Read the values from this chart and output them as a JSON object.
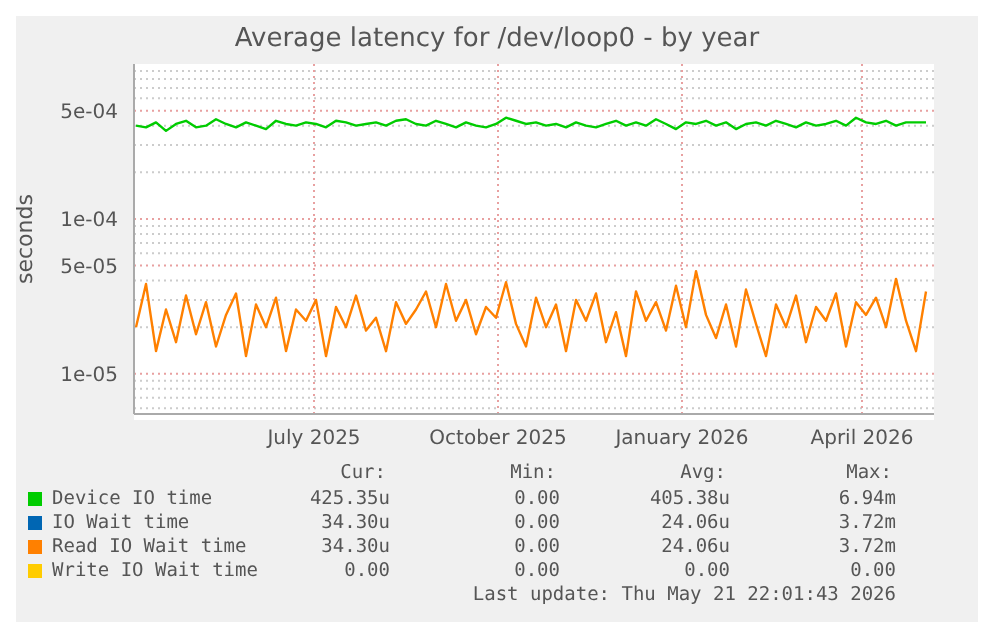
{
  "chart_data": {
    "type": "line",
    "title": "Average latency for /dev/loop0 - by year",
    "ylabel": "seconds",
    "log": "y",
    "grid": true,
    "legend": "bottom",
    "marker": "none",
    "line_style": "solid",
    "xlim": [
      "2025-04-02",
      "2026-05-07"
    ],
    "xticks": [
      {
        "value": "2025-07-01",
        "label": "July 2025"
      },
      {
        "value": "2025-10-01",
        "label": "October 2025"
      },
      {
        "value": "2026-01-01",
        "label": "January 2026"
      },
      {
        "value": "2026-04-01",
        "label": "April 2026"
      }
    ],
    "ylim": [
      5.5e-06,
      0.001
    ],
    "yticks": [
      {
        "value": 6e-06,
        "label": null
      },
      {
        "value": 7e-06,
        "label": null
      },
      {
        "value": 8e-06,
        "label": null
      },
      {
        "value": 9e-06,
        "label": null
      },
      {
        "value": 1e-05,
        "label": "1e-05"
      },
      {
        "value": 2e-05,
        "label": null
      },
      {
        "value": 3e-05,
        "label": null
      },
      {
        "value": 4e-05,
        "label": null
      },
      {
        "value": 5e-05,
        "label": "5e-05"
      },
      {
        "value": 6e-05,
        "label": null
      },
      {
        "value": 7e-05,
        "label": null
      },
      {
        "value": 8e-05,
        "label": null
      },
      {
        "value": 9e-05,
        "label": null
      },
      {
        "value": 0.0001,
        "label": "1e-04"
      },
      {
        "value": 0.0002,
        "label": null
      },
      {
        "value": 0.0003,
        "label": null
      },
      {
        "value": 0.0004,
        "label": null
      },
      {
        "value": 0.0005,
        "label": "5e-04"
      },
      {
        "value": 0.0006,
        "label": null
      },
      {
        "value": 0.0007,
        "label": null
      },
      {
        "value": 0.0008,
        "label": null
      },
      {
        "value": 0.0009,
        "label": null
      }
    ],
    "x": [
      "2025-04-03",
      "2025-04-08",
      "2025-04-13",
      "2025-04-18",
      "2025-04-23",
      "2025-04-28",
      "2025-05-03",
      "2025-05-08",
      "2025-05-13",
      "2025-05-18",
      "2025-05-23",
      "2025-05-28",
      "2025-06-02",
      "2025-06-07",
      "2025-06-12",
      "2025-06-17",
      "2025-06-22",
      "2025-06-27",
      "2025-07-02",
      "2025-07-07",
      "2025-07-12",
      "2025-07-17",
      "2025-07-22",
      "2025-07-27",
      "2025-08-01",
      "2025-08-06",
      "2025-08-11",
      "2025-08-16",
      "2025-08-21",
      "2025-08-26",
      "2025-08-31",
      "2025-09-05",
      "2025-09-10",
      "2025-09-15",
      "2025-09-20",
      "2025-09-25",
      "2025-09-30",
      "2025-10-05",
      "2025-10-10",
      "2025-10-15",
      "2025-10-20",
      "2025-10-25",
      "2025-10-30",
      "2025-11-04",
      "2025-11-09",
      "2025-11-14",
      "2025-11-19",
      "2025-11-24",
      "2025-11-29",
      "2025-12-04",
      "2025-12-09",
      "2025-12-14",
      "2025-12-19",
      "2025-12-24",
      "2025-12-29",
      "2026-01-03",
      "2026-01-08",
      "2026-01-13",
      "2026-01-18",
      "2026-01-23",
      "2026-01-28",
      "2026-02-02",
      "2026-02-07",
      "2026-02-12",
      "2026-02-17",
      "2026-02-22",
      "2026-02-27",
      "2026-03-04",
      "2026-03-09",
      "2026-03-14",
      "2026-03-19",
      "2026-03-24",
      "2026-03-29",
      "2026-04-03",
      "2026-04-08",
      "2026-04-13",
      "2026-04-18",
      "2026-04-23",
      "2026-04-28",
      "2026-05-03"
    ],
    "series": [
      {
        "name": "Device IO time",
        "color": "#00cc00",
        "values": [
          0.0004,
          0.00039,
          0.00042,
          0.00037,
          0.00041,
          0.00043,
          0.00039,
          0.0004,
          0.00044,
          0.00041,
          0.00039,
          0.00042,
          0.0004,
          0.00038,
          0.00043,
          0.00041,
          0.0004,
          0.00042,
          0.00041,
          0.00039,
          0.00043,
          0.00042,
          0.0004,
          0.00041,
          0.00042,
          0.0004,
          0.00043,
          0.00044,
          0.00041,
          0.0004,
          0.00043,
          0.00041,
          0.00039,
          0.00042,
          0.0004,
          0.00039,
          0.00041,
          0.00045,
          0.00043,
          0.00041,
          0.00042,
          0.0004,
          0.00041,
          0.00039,
          0.00042,
          0.0004,
          0.00039,
          0.00041,
          0.00043,
          0.0004,
          0.00042,
          0.0004,
          0.00044,
          0.00041,
          0.00038,
          0.00042,
          0.00041,
          0.00043,
          0.0004,
          0.00042,
          0.00038,
          0.00041,
          0.00042,
          0.0004,
          0.00043,
          0.00041,
          0.00039,
          0.00042,
          0.0004,
          0.00041,
          0.00043,
          0.0004,
          0.00045,
          0.00042,
          0.00041,
          0.00043,
          0.0004,
          0.00042,
          0.00042,
          0.00042
        ]
      },
      {
        "name": "IO Wait time",
        "color": "#0066b3",
        "values": [
          null,
          null,
          null,
          null,
          null,
          null,
          null,
          null,
          null,
          null,
          null,
          null,
          null,
          null,
          null,
          null,
          null,
          null,
          null,
          null,
          null,
          null,
          null,
          null,
          null,
          null,
          null,
          null,
          null,
          null,
          null,
          null,
          null,
          null,
          null,
          null,
          null,
          null,
          null,
          null,
          null,
          null,
          null,
          null,
          null,
          null,
          null,
          null,
          null,
          null,
          null,
          null,
          null,
          null,
          null,
          null,
          null,
          null,
          null,
          null,
          null,
          null,
          null,
          null,
          null,
          null,
          null,
          null,
          null,
          null,
          null,
          null,
          null,
          null,
          null,
          null,
          null,
          null,
          null,
          null
        ]
      },
      {
        "name": "Read IO Wait time",
        "color": "#ff8000",
        "values": [
          2e-05,
          3.8e-05,
          1.4e-05,
          2.6e-05,
          1.6e-05,
          3.2e-05,
          1.8e-05,
          2.9e-05,
          1.5e-05,
          2.4e-05,
          3.3e-05,
          1.3e-05,
          2.8e-05,
          2e-05,
          3.1e-05,
          1.4e-05,
          2.6e-05,
          2.2e-05,
          3e-05,
          1.3e-05,
          2.7e-05,
          2e-05,
          3.2e-05,
          1.9e-05,
          2.3e-05,
          1.4e-05,
          2.9e-05,
          2.1e-05,
          2.6e-05,
          3.4e-05,
          2e-05,
          3.8e-05,
          2.2e-05,
          3e-05,
          1.8e-05,
          2.7e-05,
          2.3e-05,
          3.9e-05,
          2.1e-05,
          1.5e-05,
          3.1e-05,
          2e-05,
          2.8e-05,
          1.4e-05,
          3e-05,
          2.2e-05,
          3.3e-05,
          1.6e-05,
          2.5e-05,
          1.3e-05,
          3.4e-05,
          2.2e-05,
          2.9e-05,
          1.9e-05,
          3.7e-05,
          2e-05,
          4.6e-05,
          2.4e-05,
          1.7e-05,
          2.8e-05,
          1.5e-05,
          3.5e-05,
          2.1e-05,
          1.3e-05,
          2.8e-05,
          2e-05,
          3.2e-05,
          1.6e-05,
          2.7e-05,
          2.2e-05,
          3.3e-05,
          1.5e-05,
          2.9e-05,
          2.4e-05,
          3.1e-05,
          2e-05,
          4.1e-05,
          2.2e-05,
          1.4e-05,
          3.4e-05
        ]
      },
      {
        "name": "Write IO Wait time",
        "color": "#ffcc00",
        "values": [
          null,
          null,
          null,
          null,
          null,
          null,
          null,
          null,
          null,
          null,
          null,
          null,
          null,
          null,
          null,
          null,
          null,
          null,
          null,
          null,
          null,
          null,
          null,
          null,
          null,
          null,
          null,
          null,
          null,
          null,
          null,
          null,
          null,
          null,
          null,
          null,
          null,
          null,
          null,
          null,
          null,
          null,
          null,
          null,
          null,
          null,
          null,
          null,
          null,
          null,
          null,
          null,
          null,
          null,
          null,
          null,
          null,
          null,
          null,
          null,
          null,
          null,
          null,
          null,
          null,
          null,
          null,
          null,
          null,
          null,
          null,
          null,
          null,
          null,
          null,
          null,
          null,
          null,
          null,
          null
        ]
      }
    ],
    "annotations": [
      "Cur:",
      "Min:",
      "Avg:",
      "Max:",
      "425.35u",
      "0.00",
      "405.38u",
      "6.94m",
      "34.30u",
      "0.00",
      "24.06u",
      "3.72m",
      "34.30u",
      "0.00",
      "24.06u",
      "3.72m",
      "0.00",
      "0.00",
      "0.00",
      "0.00",
      "Last update: Thu May 21 22:01:43 2026"
    ]
  }
}
